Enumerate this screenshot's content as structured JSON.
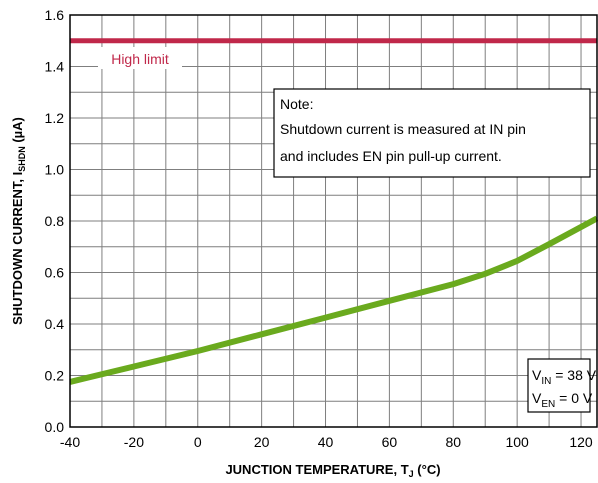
{
  "chart_data": {
    "type": "line",
    "xlabel": "JUNCTION TEMPERATURE, T",
    "xlabel_sub": "J",
    "xlabel_unit": "(°C)",
    "ylabel": "SHUTDOWN CURRENT, I",
    "ylabel_sub": "SHDN",
    "ylabel_unit": "(µA)",
    "xlim": [
      -40,
      125
    ],
    "ylim": [
      0.0,
      1.6
    ],
    "x_ticks": [
      -40,
      -20,
      0,
      20,
      40,
      60,
      80,
      100,
      120
    ],
    "y_ticks": [
      0.0,
      0.2,
      0.4,
      0.6,
      0.8,
      1.0,
      1.2,
      1.4,
      1.6
    ],
    "x_tick_labels": [
      "-40",
      "-20",
      "0",
      "20",
      "40",
      "60",
      "80",
      "100",
      "120"
    ],
    "y_tick_labels": [
      "0.0",
      "0.2",
      "0.4",
      "0.6",
      "0.8",
      "1.0",
      "1.2",
      "1.4",
      "1.6"
    ],
    "grid": true,
    "series": [
      {
        "color": "#6aaa1e",
        "x": [
          -40,
          -20,
          0,
          20,
          40,
          60,
          80,
          90,
          100,
          110,
          125
        ],
        "y": [
          0.175,
          0.235,
          0.295,
          0.36,
          0.425,
          0.49,
          0.555,
          0.595,
          0.645,
          0.71,
          0.81
        ]
      }
    ],
    "reference_lines": [
      {
        "name": "High limit",
        "y": 1.5,
        "color": "#c0284a"
      }
    ],
    "note": {
      "title": "Note:",
      "lines": [
        "Shutdown current is measured at IN pin",
        "and includes EN pin pull-up current."
      ]
    },
    "conditions": [
      {
        "symbol": "V",
        "sub": "IN",
        "rest": " = 38 V"
      },
      {
        "symbol": "V",
        "sub": "EN",
        "rest": " = 0 V"
      }
    ]
  }
}
